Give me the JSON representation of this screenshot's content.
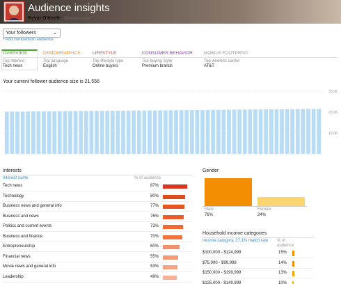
{
  "header": {
    "title": "Audience insights",
    "name": "Kevin O'Keefe",
    "handle": "@kevinokeefe"
  },
  "audience_select": "Your followers",
  "add_comparison": "+Add comparison audience",
  "tabs": [
    {
      "title": "OVERVIEW",
      "color": "#4ca22f",
      "label": "Top interest",
      "value": "Tech news"
    },
    {
      "title": "DEMOGRAPHICS",
      "color": "#f08a1e",
      "label": "Top language",
      "value": "English"
    },
    {
      "title": "LIFESTYLE",
      "color": "#e0403a",
      "label": "Top lifestyle type",
      "value": "Online buyers"
    },
    {
      "title": "CONSUMER BEHAVIOR",
      "color": "#8e44ad",
      "label": "Top buying style",
      "value": "Premium brands"
    },
    {
      "title": "MOBILE FOOTPRINT",
      "color": "#9a9a9a",
      "label": "Top wireless carrier",
      "value": "AT&T"
    }
  ],
  "audience_size_text": "Your current follower audience size is 21,556",
  "growth_chart": {
    "type": "bar",
    "color": "#b8dcf3",
    "grid": true,
    "ylim": [
      0,
      30000
    ],
    "yticks": [
      {
        "value": 10000,
        "label": "10.0K"
      },
      {
        "value": 20000,
        "label": "20.0K"
      },
      {
        "value": 30000,
        "label": "30.0K"
      }
    ],
    "values": [
      20200,
      20225,
      20250,
      20270,
      20290,
      20310,
      20330,
      20355,
      20380,
      20400,
      20420,
      20445,
      20470,
      20490,
      20510,
      20535,
      20560,
      20580,
      20600,
      20625,
      20650,
      20670,
      20690,
      20715,
      20740,
      20760,
      20780,
      20805,
      20830,
      20850,
      20870,
      20895,
      20920,
      20940,
      20960,
      20985,
      21010,
      21030,
      21050,
      21075,
      21100,
      21120,
      21140,
      21165,
      21190,
      21210,
      21230,
      21255,
      21280,
      21300,
      21320,
      21345,
      21370,
      21390,
      21410,
      21435,
      21460,
      21490,
      21520,
      21556
    ]
  },
  "interests": {
    "title": "Interests",
    "columns": [
      "Interest name",
      "% of audience"
    ],
    "rows": [
      {
        "name": "Tech news",
        "value": 87,
        "value_label": "87%",
        "color": "#d9381e"
      },
      {
        "name": "Technology",
        "value": 80,
        "value_label": "80%",
        "color": "#e04a1f"
      },
      {
        "name": "Business news and general info",
        "value": 77,
        "value_label": "77%",
        "color": "#e75420"
      },
      {
        "name": "Business and news",
        "value": 76,
        "value_label": "76%",
        "color": "#ea5d2a"
      },
      {
        "name": "Politics and current events",
        "value": 73,
        "value_label": "73%",
        "color": "#ee6a35"
      },
      {
        "name": "Business and finance",
        "value": 70,
        "value_label": "70%",
        "color": "#f0753f"
      },
      {
        "name": "Entrepreneurship",
        "value": 60,
        "value_label": "60%",
        "color": "#f3906a"
      },
      {
        "name": "Financial news",
        "value": 55,
        "value_label": "55%",
        "color": "#f59b78"
      },
      {
        "name": "Movie news and general info",
        "value": 53,
        "value_label": "53%",
        "color": "#f6a283"
      },
      {
        "name": "Leadership",
        "value": 49,
        "value_label": "49%",
        "color": "#f8b196"
      }
    ]
  },
  "gender": {
    "title": "Gender",
    "rows": [
      {
        "name": "Male",
        "value": 76,
        "value_label": "76%",
        "color": "#f28c00"
      },
      {
        "name": "Female",
        "value": 24,
        "value_label": "24%",
        "color": "#fbd56f"
      }
    ]
  },
  "income": {
    "title": "Household income categories",
    "columns": [
      "Income category, 27.1% match rate",
      "% of audience"
    ],
    "rows": [
      {
        "name": "$100,000 - $124,999",
        "value": 15,
        "value_label": "15%",
        "color": "#f28c00"
      },
      {
        "name": "$75,000 - $99,999",
        "value": 14,
        "value_label": "14%",
        "color": "#f28c00"
      },
      {
        "name": "$150,000 - $199,999",
        "value": 13,
        "value_label": "13%",
        "color": "#f5a300"
      },
      {
        "name": "$125,000 - $149,999",
        "value": 10,
        "value_label": "10%",
        "color": "#f5b400"
      }
    ]
  }
}
